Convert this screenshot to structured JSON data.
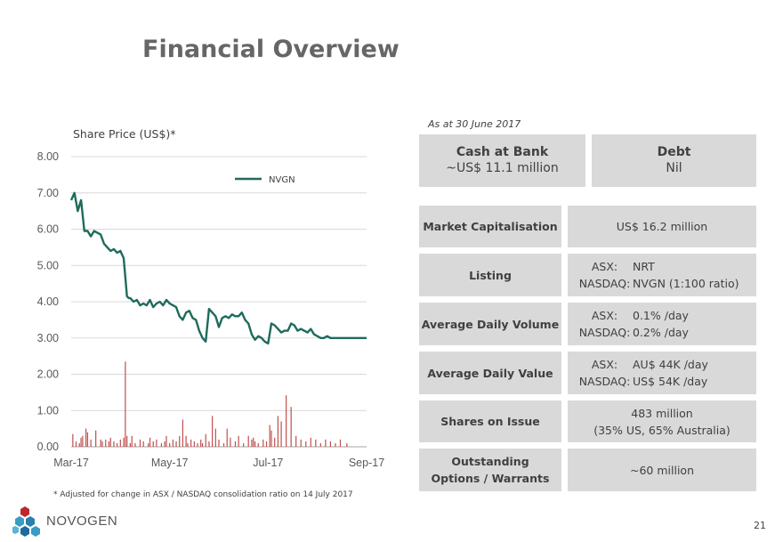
{
  "title": "Financial Overview",
  "as_at": "As at 30 June 2017",
  "cash": {
    "label": "Cash at Bank",
    "value": "~US$ 11.1 million"
  },
  "debt": {
    "label": "Debt",
    "value": "Nil"
  },
  "rows": [
    {
      "label": "Market Capitalisation",
      "value": "US$ 16.2 million"
    },
    {
      "label": "Listing",
      "pairs": [
        {
          "k": "ASX:",
          "v": "NRT"
        },
        {
          "k": "NASDAQ:",
          "v": "NVGN (1:100 ratio)"
        }
      ]
    },
    {
      "label": "Average Daily Volume",
      "pairs": [
        {
          "k": "ASX:",
          "v": "0.1% /day"
        },
        {
          "k": "NASDAQ:",
          "v": "0.2% /day"
        }
      ]
    },
    {
      "label": "Average Daily Value",
      "pairs": [
        {
          "k": "ASX:",
          "v": "AU$ 44K /day"
        },
        {
          "k": "NASDAQ:",
          "v": "US$ 54K /day"
        }
      ]
    },
    {
      "label": "Shares on Issue",
      "lines": [
        "483 million",
        "(35% US, 65% Australia)"
      ]
    },
    {
      "label_lines": [
        "Outstanding",
        "Options / Warrants"
      ],
      "value": "~60 million"
    }
  ],
  "footnote": "* Adjusted for change in ASX / NASDAQ consolidation ratio on 14 July 2017",
  "logo_text": "NOVOGEN",
  "page_number": "21",
  "chart_data": {
    "type": "line",
    "title": "Share Price (US$)*",
    "xlabel": "",
    "ylabel": "",
    "x_tick_labels": [
      "Mar-17",
      "May-17",
      "Jul-17",
      "Sep-17"
    ],
    "x_range": [
      0,
      180
    ],
    "x_ticks": [
      0,
      60,
      120,
      180
    ],
    "ylim": [
      0,
      8
    ],
    "y_tick_labels": [
      "0.00",
      "1.00",
      "2.00",
      "3.00",
      "4.00",
      "5.00",
      "6.00",
      "7.00",
      "8.00"
    ],
    "grid": true,
    "legend": {
      "placement": "top-center",
      "entries": [
        "NVGN"
      ]
    },
    "colors": {
      "line": "#1e6b5c",
      "bars": "#c0504d",
      "grid": "#d9d9d9"
    },
    "series": [
      {
        "name": "NVGN",
        "type": "line",
        "x": [
          0,
          2,
          4,
          6,
          8,
          10,
          12,
          14,
          16,
          18,
          20,
          22,
          24,
          26,
          28,
          30,
          32,
          34,
          35,
          36,
          38,
          40,
          42,
          44,
          46,
          48,
          50,
          52,
          54,
          56,
          58,
          60,
          62,
          64,
          66,
          68,
          70,
          72,
          74,
          76,
          78,
          80,
          82,
          84,
          86,
          88,
          90,
          92,
          94,
          96,
          98,
          100,
          102,
          104,
          106,
          108,
          110,
          112,
          114,
          116,
          118,
          120,
          122,
          124,
          126,
          128,
          130,
          132,
          134,
          136,
          138,
          140,
          142,
          144,
          146,
          148,
          150,
          152,
          154,
          156,
          158,
          160,
          162,
          164,
          166,
          168,
          170,
          172,
          174,
          176,
          178,
          180
        ],
        "y": [
          6.8,
          7.0,
          6.5,
          6.8,
          5.95,
          5.95,
          5.8,
          5.95,
          5.9,
          5.85,
          5.6,
          5.5,
          5.4,
          5.45,
          5.35,
          5.4,
          5.2,
          4.15,
          4.1,
          4.1,
          4.0,
          4.05,
          3.9,
          3.95,
          3.9,
          4.05,
          3.85,
          3.95,
          4.0,
          3.9,
          4.05,
          3.95,
          3.9,
          3.85,
          3.6,
          3.5,
          3.7,
          3.75,
          3.55,
          3.5,
          3.2,
          3.0,
          2.9,
          3.8,
          3.7,
          3.6,
          3.3,
          3.55,
          3.6,
          3.55,
          3.65,
          3.6,
          3.6,
          3.7,
          3.5,
          3.4,
          3.1,
          2.95,
          3.05,
          3.0,
          2.9,
          2.85,
          3.4,
          3.35,
          3.25,
          3.15,
          3.2,
          3.2,
          3.4,
          3.35,
          3.2,
          3.25,
          3.2,
          3.15,
          3.25,
          3.1,
          3.05,
          3.0,
          3.0,
          3.05,
          3.0,
          3.0,
          3.0,
          3.0,
          3.0,
          3.0,
          3.0,
          3.0,
          3.0,
          3.0,
          3.0,
          3.0
        ]
      },
      {
        "name": "Volume",
        "type": "bar",
        "x": [
          1,
          3,
          5,
          6,
          7,
          9,
          10,
          12,
          15,
          18,
          19,
          21,
          23,
          24,
          26,
          28,
          30,
          32,
          33,
          34,
          36,
          37,
          39,
          42,
          44,
          47,
          48,
          50,
          52,
          55,
          57,
          58,
          60,
          62,
          64,
          66,
          68,
          70,
          71,
          73,
          75,
          77,
          79,
          80,
          82,
          84,
          86,
          88,
          90,
          93,
          95,
          97,
          100,
          102,
          105,
          108,
          110,
          111,
          112,
          114,
          117,
          119,
          121,
          122,
          124,
          126,
          128,
          131,
          134,
          137,
          140,
          143,
          146,
          149,
          152,
          155,
          158,
          161,
          164,
          168
        ],
        "y": [
          0.35,
          0.15,
          0.1,
          0.25,
          0.3,
          0.5,
          0.4,
          0.2,
          0.45,
          0.2,
          0.15,
          0.2,
          0.15,
          0.25,
          0.15,
          0.1,
          0.2,
          0.25,
          2.35,
          0.3,
          0.1,
          0.3,
          0.1,
          0.2,
          0.15,
          0.1,
          0.25,
          0.15,
          0.2,
          0.1,
          0.15,
          0.3,
          0.1,
          0.2,
          0.15,
          0.3,
          0.75,
          0.3,
          0.1,
          0.2,
          0.15,
          0.1,
          0.2,
          0.1,
          0.35,
          0.15,
          0.85,
          0.5,
          0.2,
          0.1,
          0.5,
          0.25,
          0.15,
          0.3,
          0.1,
          0.3,
          0.2,
          0.25,
          0.15,
          0.1,
          0.2,
          0.15,
          0.6,
          0.45,
          0.25,
          0.85,
          0.7,
          1.42,
          1.1,
          0.3,
          0.2,
          0.15,
          0.25,
          0.2,
          0.1,
          0.2,
          0.15,
          0.1,
          0.2,
          0.1
        ]
      }
    ]
  }
}
